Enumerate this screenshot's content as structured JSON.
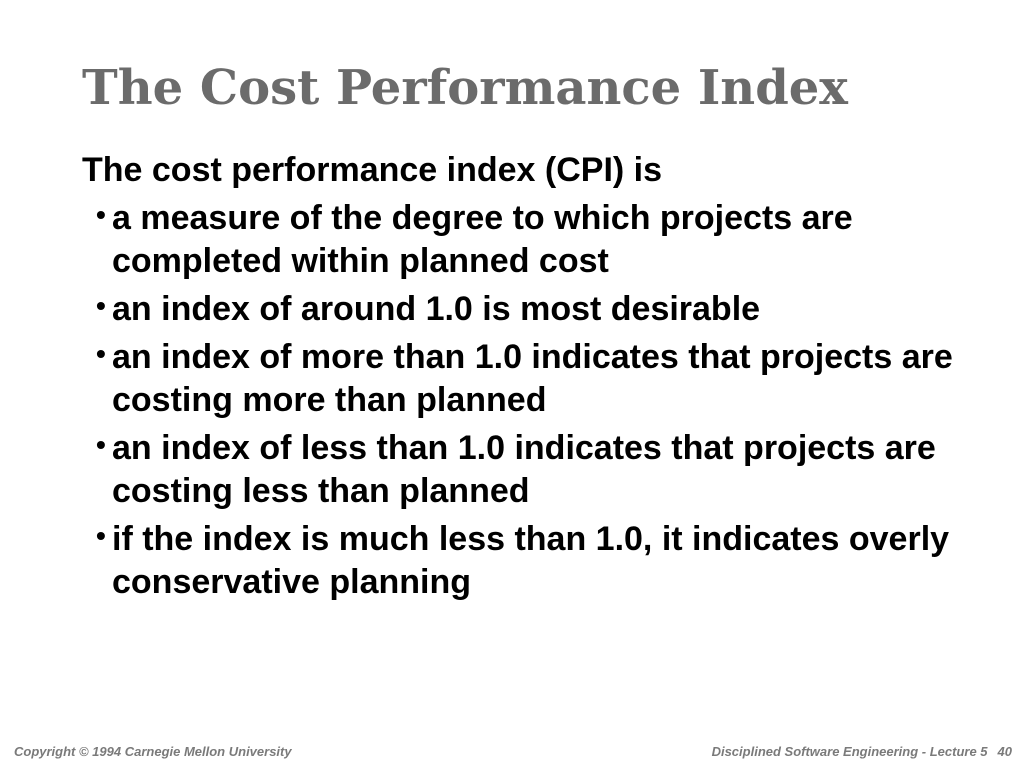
{
  "slide": {
    "title": "The Cost Performance Index",
    "intro": "The cost performance index (CPI) is",
    "bullet_glyph": "•",
    "bullets": [
      "a measure of the degree to which projects are completed within planned cost",
      "an index of around 1.0 is most desirable",
      "an index of more than 1.0 indicates that projects are costing more than planned",
      "an index of less than 1.0 indicates that projects are costing less than planned",
      "if the index is much less than 1.0, it indicates overly conservative planning"
    ]
  },
  "footer": {
    "copyright": "Copyright  © 1994 Carnegie Mellon University",
    "course": "Disciplined Software Engineering - Lecture 5",
    "page_number": "40"
  },
  "colors": {
    "title": "#6b6b6b",
    "body_text": "#000000",
    "footer_text": "#7a7a7a",
    "background": "#ffffff"
  }
}
